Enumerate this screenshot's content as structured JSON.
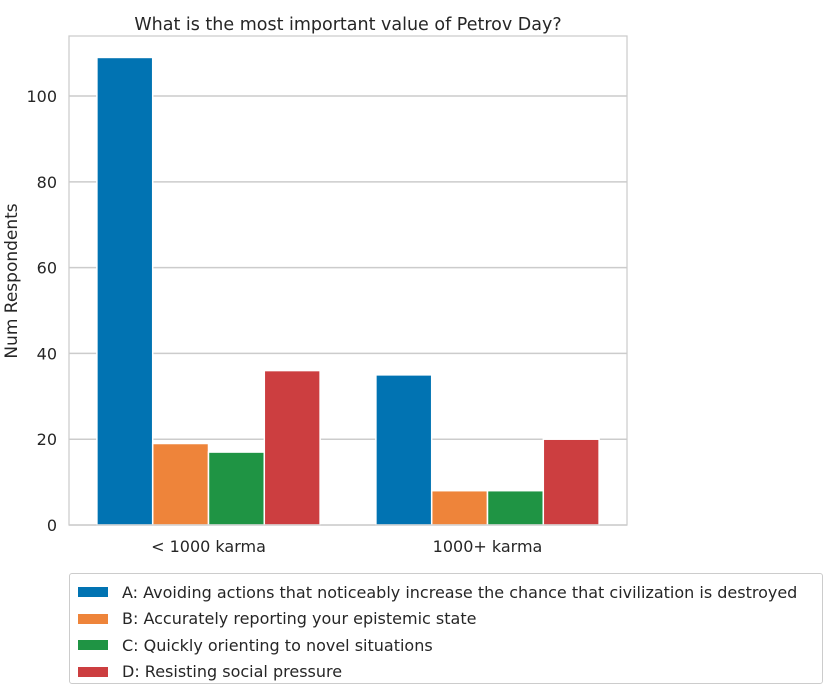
{
  "chart_data": {
    "type": "bar",
    "title": "What is the most important value of Petrov Day?",
    "xlabel": "",
    "ylabel": "Num Respondents",
    "categories": [
      "< 1000 karma",
      "1000+ karma"
    ],
    "ylim": [
      0,
      114
    ],
    "yticks": [
      0,
      20,
      40,
      60,
      80,
      100
    ],
    "grid": true,
    "legend_position": "bottom",
    "series": [
      {
        "name": "A: Avoiding actions that noticeably increase the chance that civilization is destroyed",
        "values": [
          109,
          35
        ],
        "color": "#0173b2"
      },
      {
        "name": "B: Accurately reporting your epistemic state",
        "values": [
          19,
          8
        ],
        "color": "#ee843a"
      },
      {
        "name": "C: Quickly orienting to novel situations",
        "values": [
          17,
          8
        ],
        "color": "#1f9444"
      },
      {
        "name": "D: Resisting social pressure",
        "values": [
          36,
          20
        ],
        "color": "#cc3e40"
      }
    ]
  }
}
